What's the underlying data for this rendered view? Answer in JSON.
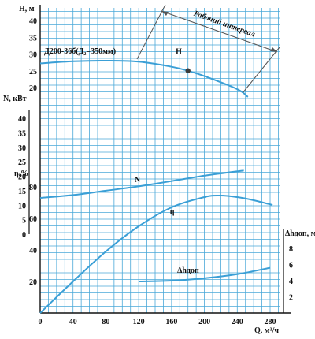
{
  "chart_data": {
    "type": "line",
    "pump_label": "Д200-36б(Д₂=350мм)",
    "working_interval_label": "Рабочий интервал",
    "x_axis": {
      "label": "Q, м³/ч",
      "ticks": [
        0,
        40,
        80,
        120,
        160,
        200,
        240,
        280
      ],
      "range": [
        0,
        300
      ]
    },
    "y_axes": [
      {
        "id": "H",
        "label": "H, м",
        "ticks": [
          20,
          25,
          30,
          35,
          40
        ],
        "range": [
          15,
          42
        ]
      },
      {
        "id": "N",
        "label": "N, кВт",
        "ticks": [
          0,
          5,
          10,
          15,
          20,
          25,
          30,
          35,
          40
        ],
        "range": [
          0,
          45
        ]
      },
      {
        "id": "eta",
        "label": "η,%",
        "ticks": [
          20,
          40,
          60,
          80
        ],
        "range": [
          0,
          90
        ]
      },
      {
        "id": "dh",
        "label": "Δhдоп, м",
        "ticks": [
          2,
          4,
          6,
          8
        ],
        "range": [
          0,
          10
        ]
      }
    ],
    "series": [
      {
        "name": "H",
        "axis": "H",
        "label_at": [
          165,
          30
        ],
        "x": [
          0,
          40,
          80,
          120,
          160,
          180,
          200,
          240,
          253
        ],
        "y": [
          27.2,
          27.8,
          28.0,
          27.7,
          26.2,
          25.0,
          23.4,
          19.5,
          17.2
        ]
      },
      {
        "name": "N",
        "axis": "N",
        "label_at": [
          115,
          18
        ],
        "x": [
          0,
          40,
          80,
          120,
          160,
          200,
          248
        ],
        "y": [
          12.5,
          13.5,
          15.0,
          16.5,
          18.3,
          20.2,
          22.0
        ]
      },
      {
        "name": "η",
        "axis": "eta",
        "label_at": [
          158,
          63
        ],
        "x": [
          0,
          40,
          80,
          120,
          160,
          200,
          220,
          240,
          260,
          283
        ],
        "y": [
          0,
          20,
          39,
          55,
          67,
          73.5,
          74.5,
          73.5,
          71.5,
          68.5
        ]
      },
      {
        "name": "Δhдоп",
        "axis": "dh",
        "label_at": [
          167,
          5.0
        ],
        "x": [
          120,
          160,
          200,
          240,
          280
        ],
        "y": [
          3.9,
          4.0,
          4.3,
          4.8,
          5.6
        ]
      }
    ],
    "working_point": {
      "x": 180,
      "y": 25.0
    },
    "grid": true,
    "colors": {
      "curve": "#3a9fd6",
      "grid": "#4aa8d8",
      "axis": "#111111",
      "arrow": "#555555"
    }
  }
}
